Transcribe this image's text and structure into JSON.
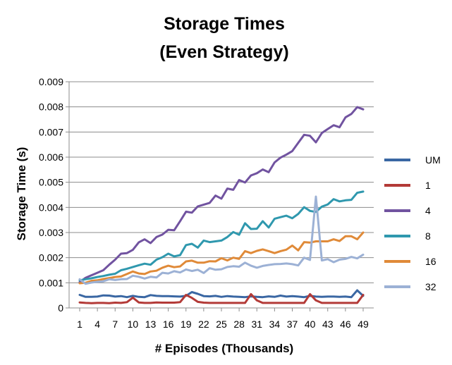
{
  "chart_data": {
    "type": "line",
    "title_lines": [
      "Storage Times",
      "(Even Strategy)"
    ],
    "xlabel": "# Episodes (Thousands)",
    "ylabel": "Storage Time (s)",
    "ylim": [
      0,
      0.009
    ],
    "y_ticks": [
      "0",
      "0.001",
      "0.002",
      "0.003",
      "0.004",
      "0.005",
      "0.006",
      "0.007",
      "0.008",
      "0.009"
    ],
    "x": [
      1,
      2,
      3,
      4,
      5,
      6,
      7,
      8,
      9,
      10,
      11,
      12,
      13,
      14,
      15,
      16,
      17,
      18,
      19,
      20,
      21,
      22,
      23,
      24,
      25,
      26,
      27,
      28,
      29,
      30,
      31,
      32,
      33,
      34,
      35,
      36,
      37,
      38,
      39,
      40,
      41,
      42,
      43,
      44,
      45,
      46,
      47,
      48,
      49
    ],
    "x_tick_labels": [
      "1",
      "4",
      "7",
      "10",
      "13",
      "16",
      "19",
      "22",
      "25",
      "28",
      "31",
      "34",
      "37",
      "40",
      "43",
      "46",
      "49"
    ],
    "x_tick_values": [
      1,
      4,
      7,
      10,
      13,
      16,
      19,
      22,
      25,
      28,
      31,
      34,
      37,
      40,
      43,
      46,
      49
    ],
    "grid": "horizontal",
    "legend_position": "right",
    "series": [
      {
        "name": "UM",
        "color": "#3a67a3",
        "values": [
          0.00052,
          0.00044,
          0.00044,
          0.00045,
          0.0005,
          0.00049,
          0.00045,
          0.00047,
          0.00043,
          0.00048,
          0.00044,
          0.00043,
          0.00051,
          0.00048,
          0.00047,
          0.00047,
          0.00046,
          0.00045,
          0.00048,
          0.00063,
          0.00056,
          0.00047,
          0.00046,
          0.00048,
          0.00044,
          0.00047,
          0.00045,
          0.00044,
          0.00043,
          0.00046,
          0.00044,
          0.00043,
          0.00046,
          0.00044,
          0.00049,
          0.00045,
          0.00047,
          0.00045,
          0.00043,
          0.00048,
          0.00045,
          0.00044,
          0.00045,
          0.00045,
          0.00044,
          0.00045,
          0.00043,
          0.0007,
          0.00048
        ]
      },
      {
        "name": "1",
        "color": "#b33a37",
        "values": [
          0.00022,
          0.0002,
          0.00019,
          0.0002,
          0.0002,
          0.00019,
          0.00021,
          0.0002,
          0.00023,
          0.00041,
          0.00022,
          0.0002,
          0.0002,
          0.00022,
          0.00021,
          0.00021,
          0.00021,
          0.00023,
          0.00052,
          0.0004,
          0.00024,
          0.00021,
          0.0002,
          0.0002,
          0.0002,
          0.0002,
          0.0002,
          0.0002,
          0.0002,
          0.00055,
          0.0003,
          0.0002,
          0.0002,
          0.0002,
          0.0002,
          0.0002,
          0.0002,
          0.0002,
          0.0002,
          0.00055,
          0.0003,
          0.0002,
          0.0002,
          0.0002,
          0.0002,
          0.0002,
          0.0002,
          0.0002,
          0.00052
        ]
      },
      {
        "name": "4",
        "color": "#7153a0",
        "values": [
          0.00103,
          0.0012,
          0.0013,
          0.0014,
          0.0015,
          0.00172,
          0.00192,
          0.00216,
          0.00218,
          0.00231,
          0.00261,
          0.00273,
          0.00258,
          0.00282,
          0.00292,
          0.00311,
          0.00309,
          0.00345,
          0.00383,
          0.00379,
          0.00404,
          0.00411,
          0.00418,
          0.00447,
          0.00435,
          0.00475,
          0.0047,
          0.00509,
          0.00499,
          0.00527,
          0.00536,
          0.00551,
          0.0054,
          0.00579,
          0.00598,
          0.0061,
          0.00624,
          0.00657,
          0.00689,
          0.00685,
          0.00659,
          0.00696,
          0.00712,
          0.00727,
          0.00719,
          0.00758,
          0.00772,
          0.00799,
          0.0079
        ]
      },
      {
        "name": "8",
        "color": "#2f98ae",
        "values": [
          0.0011,
          0.00114,
          0.00118,
          0.00123,
          0.00127,
          0.00132,
          0.00136,
          0.0015,
          0.00156,
          0.00163,
          0.0017,
          0.00176,
          0.00172,
          0.00192,
          0.00202,
          0.00216,
          0.00205,
          0.0021,
          0.0025,
          0.00255,
          0.0024,
          0.00268,
          0.00262,
          0.00265,
          0.00268,
          0.00282,
          0.00302,
          0.00291,
          0.00337,
          0.00314,
          0.00315,
          0.00345,
          0.0032,
          0.00355,
          0.00361,
          0.00367,
          0.00357,
          0.00374,
          0.00401,
          0.00386,
          0.00382,
          0.00403,
          0.00412,
          0.00433,
          0.00424,
          0.00428,
          0.0043,
          0.00458,
          0.00463
        ]
      },
      {
        "name": "16",
        "color": "#e08a38",
        "values": [
          0.00098,
          0.001,
          0.00108,
          0.0011,
          0.00115,
          0.00119,
          0.00123,
          0.00125,
          0.00135,
          0.00145,
          0.00137,
          0.00135,
          0.00145,
          0.00148,
          0.0016,
          0.00168,
          0.00162,
          0.00165,
          0.00185,
          0.00188,
          0.0018,
          0.0018,
          0.00186,
          0.00185,
          0.00198,
          0.00189,
          0.002,
          0.00195,
          0.00226,
          0.00218,
          0.00227,
          0.00233,
          0.00226,
          0.00218,
          0.00226,
          0.00232,
          0.00248,
          0.00229,
          0.00262,
          0.0026,
          0.00265,
          0.00265,
          0.00265,
          0.00273,
          0.00266,
          0.00285,
          0.00285,
          0.00273,
          0.003
        ]
      },
      {
        "name": "32",
        "color": "#9cb1d5",
        "values": [
          0.00114,
          0.00096,
          0.00101,
          0.00104,
          0.00106,
          0.00114,
          0.00111,
          0.00114,
          0.00115,
          0.00128,
          0.00124,
          0.00117,
          0.00124,
          0.00121,
          0.0014,
          0.00137,
          0.00146,
          0.00141,
          0.00153,
          0.00147,
          0.00152,
          0.00139,
          0.00158,
          0.00152,
          0.00154,
          0.00163,
          0.00166,
          0.00164,
          0.0018,
          0.00168,
          0.0016,
          0.00167,
          0.00171,
          0.00174,
          0.00175,
          0.00177,
          0.00174,
          0.00169,
          0.002,
          0.00191,
          0.00443,
          0.00189,
          0.00194,
          0.00182,
          0.00192,
          0.00195,
          0.00203,
          0.00197,
          0.00212
        ]
      }
    ]
  }
}
